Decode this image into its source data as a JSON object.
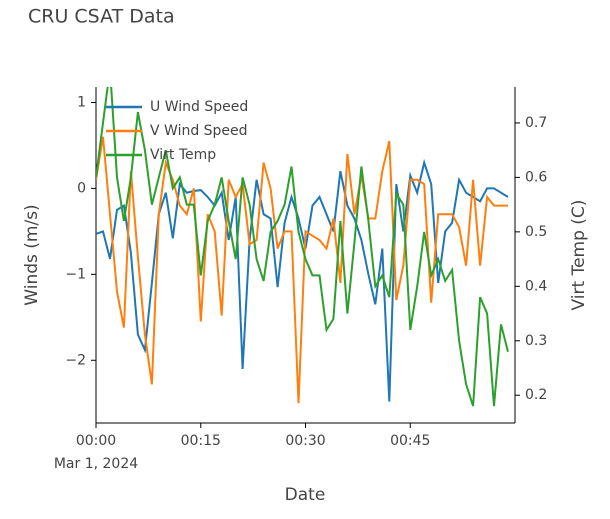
{
  "chart_data": {
    "type": "line",
    "title": "CRU CSAT Data",
    "xlabel": "Date",
    "ylabel": "Winds (m/s)",
    "y2label": "Virt Temp (C)",
    "x": [
      "2024-03-01 00:00",
      "2024-03-01 00:01",
      "2024-03-01 00:02",
      "2024-03-01 00:03",
      "2024-03-01 00:04",
      "2024-03-01 00:05",
      "2024-03-01 00:06",
      "2024-03-01 00:07",
      "2024-03-01 00:08",
      "2024-03-01 00:09",
      "2024-03-01 00:10",
      "2024-03-01 00:11",
      "2024-03-01 00:12",
      "2024-03-01 00:13",
      "2024-03-01 00:14",
      "2024-03-01 00:15",
      "2024-03-01 00:16",
      "2024-03-01 00:17",
      "2024-03-01 00:18",
      "2024-03-01 00:19",
      "2024-03-01 00:20",
      "2024-03-01 00:21",
      "2024-03-01 00:22",
      "2024-03-01 00:23",
      "2024-03-01 00:24",
      "2024-03-01 00:25",
      "2024-03-01 00:26",
      "2024-03-01 00:27",
      "2024-03-01 00:28",
      "2024-03-01 00:29",
      "2024-03-01 00:30",
      "2024-03-01 00:31",
      "2024-03-01 00:32",
      "2024-03-01 00:33",
      "2024-03-01 00:34",
      "2024-03-01 00:35",
      "2024-03-01 00:36",
      "2024-03-01 00:37",
      "2024-03-01 00:38",
      "2024-03-01 00:39",
      "2024-03-01 00:40",
      "2024-03-01 00:41",
      "2024-03-01 00:42",
      "2024-03-01 00:43",
      "2024-03-01 00:44",
      "2024-03-01 00:45",
      "2024-03-01 00:46",
      "2024-03-01 00:47",
      "2024-03-01 00:48",
      "2024-03-01 00:49",
      "2024-03-01 00:50",
      "2024-03-01 00:51",
      "2024-03-01 00:52",
      "2024-03-01 00:53",
      "2024-03-01 00:54",
      "2024-03-01 00:55",
      "2024-03-01 00:56",
      "2024-03-01 00:57",
      "2024-03-01 00:58",
      "2024-03-01 00:59"
    ],
    "series": [
      {
        "name": "U Wind Speed",
        "color": "#1f77b4",
        "values": [
          -0.53,
          -0.5,
          -0.82,
          -0.25,
          -0.2,
          -0.75,
          -1.7,
          -1.88,
          -1.1,
          -0.3,
          -0.05,
          -0.58,
          0.05,
          -0.05,
          -0.03,
          -0.02,
          -0.1,
          -0.2,
          -0.05,
          -0.6,
          -0.1,
          -2.1,
          -0.6,
          0.1,
          -0.3,
          -0.35,
          -1.15,
          -0.4,
          -0.1,
          -0.35,
          -0.7,
          -0.2,
          -0.1,
          -0.3,
          -0.5,
          0.2,
          -0.2,
          -0.35,
          -0.6,
          -1.0,
          -1.35,
          -0.7,
          -2.48,
          0.05,
          -0.5,
          0.15,
          -0.05,
          0.3,
          0.05,
          -1.1,
          -0.5,
          -0.4,
          0.1,
          -0.05,
          -0.1,
          -0.15,
          0.0,
          0.0,
          -0.05,
          -0.1
        ]
      },
      {
        "name": "V Wind Speed",
        "color": "#ff7f0e",
        "values": [
          0.1,
          0.6,
          -0.3,
          -1.2,
          -1.62,
          0.2,
          -0.8,
          -1.7,
          -2.28,
          -0.3,
          0.3,
          0.1,
          -0.2,
          -0.3,
          0.0,
          -1.55,
          -0.3,
          -0.5,
          -1.48,
          0.1,
          -0.1,
          0.05,
          -0.65,
          -0.6,
          0.3,
          0.0,
          -0.7,
          -0.5,
          -0.5,
          -2.5,
          -0.5,
          -0.55,
          -0.6,
          -0.7,
          -0.35,
          -1.1,
          0.4,
          -0.3,
          0.15,
          -0.35,
          -0.35,
          0.2,
          0.55,
          -1.3,
          -0.9,
          0.1,
          0.1,
          0.05,
          -1.33,
          -0.3,
          -0.3,
          -0.3,
          -0.45,
          -0.9,
          0.1,
          -0.9,
          -0.1,
          -0.2,
          -0.2,
          -0.2
        ]
      },
      {
        "name": "Virt Temp",
        "color": "#2ca02c",
        "axis": "y2",
        "values": [
          0.6,
          0.7,
          0.8,
          0.6,
          0.52,
          0.6,
          0.72,
          0.65,
          0.55,
          0.6,
          0.65,
          0.58,
          0.6,
          0.55,
          0.55,
          0.42,
          0.52,
          0.55,
          0.6,
          0.52,
          0.45,
          0.6,
          0.55,
          0.45,
          0.41,
          0.5,
          0.52,
          0.55,
          0.62,
          0.5,
          0.45,
          0.42,
          0.42,
          0.32,
          0.34,
          0.52,
          0.35,
          0.48,
          0.62,
          0.52,
          0.4,
          0.42,
          0.38,
          0.57,
          0.55,
          0.32,
          0.4,
          0.5,
          0.42,
          0.45,
          0.41,
          0.43,
          0.3,
          0.22,
          0.18,
          0.38,
          0.35,
          0.18,
          0.33,
          0.28
        ]
      }
    ],
    "xlim": [
      "2024-03-01 00:00",
      "2024-03-01 01:00"
    ],
    "xticks": [
      {
        "value": "2024-03-01 00:00",
        "label": "00:00"
      },
      {
        "value": "2024-03-01 00:15",
        "label": "00:15"
      },
      {
        "value": "2024-03-01 00:30",
        "label": "00:30"
      },
      {
        "value": "2024-03-01 00:45",
        "label": "00:45"
      }
    ],
    "xtick_date": "Mar 1, 2024",
    "ylim": [
      -2.73,
      1.18
    ],
    "yticks": [
      {
        "value": -2,
        "label": "−2"
      },
      {
        "value": -1,
        "label": "−1"
      },
      0,
      1
    ],
    "y2lim": [
      0.149,
      0.766
    ],
    "y2ticks": [
      0.2,
      0.3,
      0.4,
      0.5,
      0.6,
      0.7
    ],
    "legend": "upper left",
    "grid": false
  }
}
